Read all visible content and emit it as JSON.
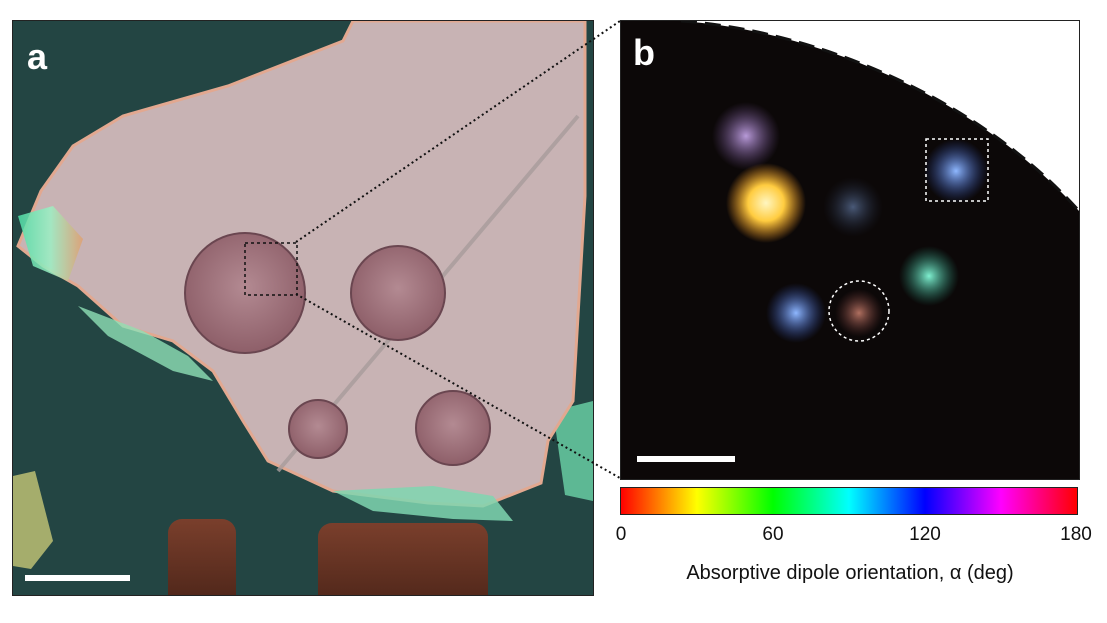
{
  "figure": {
    "panel_a": {
      "label": "a",
      "substrate_color": "#234543",
      "flake_color": "#c8b3b4",
      "disk_color": "#9e6f78"
    },
    "panel_b": {
      "label": "b",
      "background_color": "#0c0808"
    },
    "colorbar": {
      "ticks": [
        "0",
        "60",
        "120",
        "180"
      ],
      "title": "Absorptive dipole orientation, α (deg)",
      "range": [
        0,
        180
      ],
      "colors": [
        "#ff0000",
        "#ffff00",
        "#00ff00",
        "#00ffff",
        "#0000ff",
        "#ff00ff",
        "#ff0000"
      ]
    }
  }
}
